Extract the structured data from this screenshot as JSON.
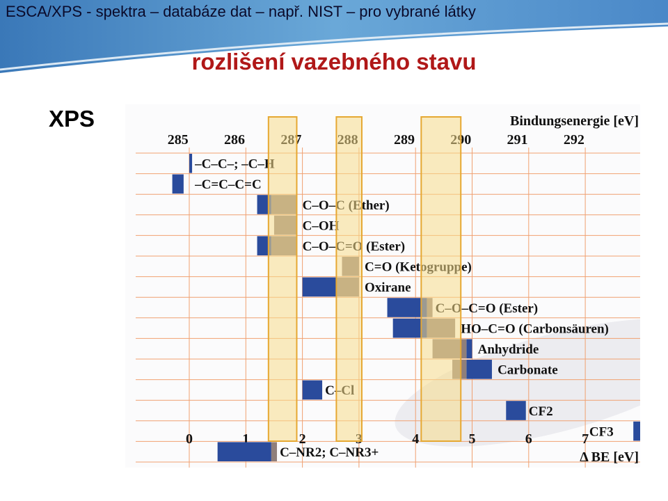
{
  "slide": {
    "title": "ESCA/XPS  - spektra – databáze dat – např. NIST – pro vybrané látky",
    "subtitle": "rozlišení vazebného stavu",
    "side_label": "XPS"
  },
  "colors": {
    "blue": "#2a4b9c",
    "gray": "#8f7f7b",
    "highlight_fill": "#f8dc8a",
    "highlight_stroke": "#e6a832",
    "grid": "#f0a070",
    "title_red": "#b01818"
  },
  "chart_data": {
    "type": "table",
    "top_axis": {
      "label": "Bindungsenergie [eV]",
      "ticks": [
        "285",
        "286",
        "287",
        "288",
        "289",
        "290",
        "291",
        "292"
      ]
    },
    "bottom_axis": {
      "label": "Δ BE [eV]",
      "ticks": [
        "0",
        "1",
        "2",
        "3",
        "4",
        "5",
        "6",
        "7"
      ]
    },
    "highlight_bands_delta_ev": [
      [
        1.4,
        1.9
      ],
      [
        2.6,
        3.05
      ],
      [
        4.1,
        4.8
      ]
    ],
    "rows": [
      {
        "label": "–C–C–; –C–H",
        "blue": [
          0,
          0.05
        ],
        "gray": null,
        "label_at": 0.1
      },
      {
        "label": "–C=C–C=C",
        "blue": [
          -0.3,
          -0.1
        ],
        "gray": null,
        "label_at": 0.1
      },
      {
        "label": "C–O–C (Ether)",
        "blue": [
          1.2,
          1.45
        ],
        "gray": [
          1.45,
          1.9
        ],
        "label_at": 2.0
      },
      {
        "label": "C–OH",
        "blue": null,
        "gray": [
          1.5,
          1.9
        ],
        "label_at": 2.0
      },
      {
        "label": "C–O–C=O (Ester)",
        "blue": [
          1.2,
          1.45
        ],
        "gray": [
          1.45,
          1.9
        ],
        "label_at": 2.0
      },
      {
        "label": "C=O (Ketogruppe)",
        "blue": null,
        "gray": [
          2.7,
          3.0
        ],
        "label_at": 3.1
      },
      {
        "label": "Oxirane",
        "blue": [
          2.0,
          2.6
        ],
        "gray": [
          2.6,
          3.0
        ],
        "label_at": 3.1
      },
      {
        "label": "C–O–C=O (Ester)",
        "blue": [
          3.5,
          4.2
        ],
        "gray": [
          4.2,
          4.3
        ],
        "label_at": 4.35
      },
      {
        "label": "HO–C=O (Carbonsäuren)",
        "blue": [
          3.6,
          4.2
        ],
        "gray": [
          4.2,
          4.7
        ],
        "label_at": 4.8
      },
      {
        "label": "Anhydride",
        "blue": [
          4.9,
          5.0
        ],
        "gray": [
          4.3,
          4.9
        ],
        "label_at": 5.1
      },
      {
        "label": "Carbonate",
        "blue": [
          4.9,
          5.35
        ],
        "gray": [
          4.65,
          4.9
        ],
        "label_at": 5.45
      },
      {
        "label": "C–Cl",
        "blue": [
          2.0,
          2.35
        ],
        "gray": null,
        "label_at": 2.4
      },
      {
        "label": "CF2",
        "blue": [
          5.6,
          5.95
        ],
        "gray": null,
        "label_at": 6.0
      },
      {
        "label": "CF3",
        "blue": [
          7.85,
          8.1
        ],
        "gray": null,
        "label_at": 7.5
      },
      {
        "label": "C–NR2; C–NR3+",
        "blue": [
          0.5,
          1.45
        ],
        "gray": [
          1.45,
          1.55
        ],
        "label_at": 1.6
      }
    ]
  }
}
